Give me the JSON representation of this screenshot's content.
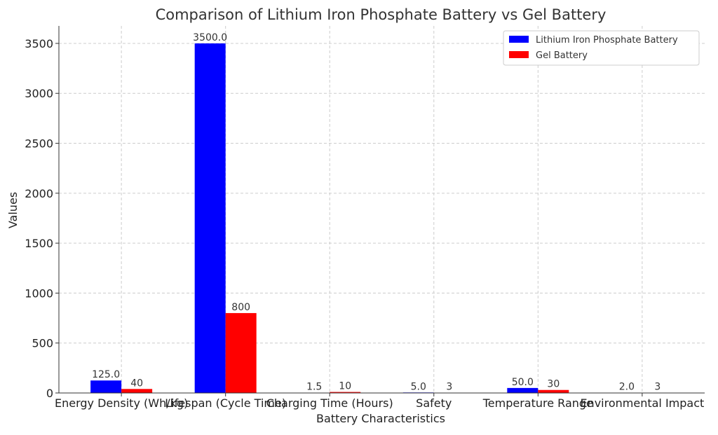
{
  "chart_data": {
    "type": "bar",
    "title": "Comparison of Lithium Iron Phosphate Battery vs Gel Battery",
    "xlabel": "Battery Characteristics",
    "ylabel": "Values",
    "categories": [
      "Energy Density (Wh/kg)",
      "Lifespan (Cycle Time)",
      "Charging Time (Hours)",
      "Safety",
      "Temperature Range",
      "Environmental Impact"
    ],
    "series": [
      {
        "name": "Lithium Iron Phosphate Battery",
        "color": "#0000ff",
        "values": [
          125.0,
          3500.0,
          1.5,
          5.0,
          50.0,
          2.0
        ],
        "labels": [
          "125.0",
          "3500.0",
          "1.5",
          "5.0",
          "50.0",
          "2.0"
        ]
      },
      {
        "name": "Gel Battery",
        "color": "#ff0000",
        "values": [
          40,
          800,
          10,
          3,
          30,
          3
        ],
        "labels": [
          "40",
          "800",
          "10",
          "3",
          "30",
          "3"
        ]
      }
    ],
    "ylim": [
      0,
      3675
    ],
    "yticks": [
      0,
      500,
      1000,
      1500,
      2000,
      2500,
      3000,
      3500
    ],
    "grid": true,
    "legend_position": "top-right"
  }
}
